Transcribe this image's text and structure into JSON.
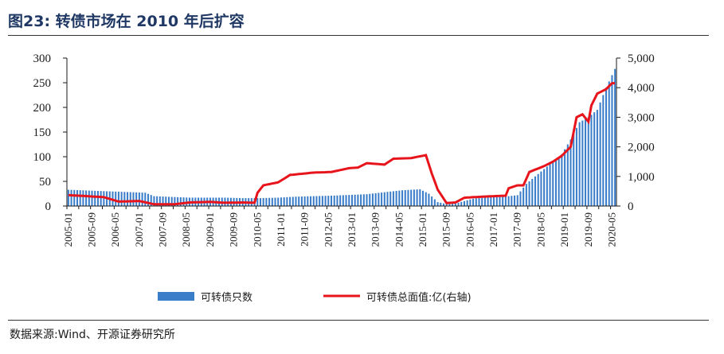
{
  "header": {
    "title": "图23:  转债市场在 2010 年后扩容"
  },
  "footer": {
    "source": "数据来源:Wind、开源证券研究所"
  },
  "chart_data": {
    "type": "bar+line",
    "title": "转债市场在 2010 年后扩容",
    "x_start": "2005-01",
    "x_end": "2020-06",
    "x_tick_labels": [
      "2005-01",
      "2005-09",
      "2006-05",
      "2007-01",
      "2007-09",
      "2008-05",
      "2009-01",
      "2009-09",
      "2010-05",
      "2011-01",
      "2011-09",
      "2012-05",
      "2013-01",
      "2013-09",
      "2014-05",
      "2015-01",
      "2015-09",
      "2016-05",
      "2017-01",
      "2017-09",
      "2018-05",
      "2019-01",
      "2019-09",
      "2020-05"
    ],
    "y_left": {
      "min": 0,
      "max": 300,
      "ticks": [
        "0",
        "50",
        "100",
        "150",
        "200",
        "250",
        "300"
      ]
    },
    "y_right": {
      "min": 0,
      "max": 5000,
      "ticks": [
        "0",
        "1,000",
        "2,000",
        "3,000",
        "4,000",
        "5,000"
      ]
    },
    "grid": false,
    "legend_position": "bottom",
    "series": [
      {
        "name": "可转债只数",
        "type": "bar",
        "axis": "left",
        "color": "#3a7dc9",
        "anchors": [
          [
            "2005-01",
            33
          ],
          [
            "2006-06",
            29
          ],
          [
            "2007-03",
            27
          ],
          [
            "2007-06",
            20
          ],
          [
            "2008-06",
            17
          ],
          [
            "2009-06",
            17
          ],
          [
            "2009-12",
            16
          ],
          [
            "2010-06",
            16
          ],
          [
            "2010-12",
            17
          ],
          [
            "2011-06",
            19
          ],
          [
            "2012-06",
            21
          ],
          [
            "2013-06",
            24
          ],
          [
            "2014-06",
            32
          ],
          [
            "2014-12",
            34
          ],
          [
            "2015-03",
            25
          ],
          [
            "2015-06",
            8
          ],
          [
            "2015-09",
            4
          ],
          [
            "2015-12",
            5
          ],
          [
            "2016-06",
            15
          ],
          [
            "2016-12",
            18
          ],
          [
            "2017-06",
            20
          ],
          [
            "2017-09",
            22
          ],
          [
            "2017-12",
            45
          ],
          [
            "2018-06",
            75
          ],
          [
            "2018-12",
            105
          ],
          [
            "2019-03",
            135
          ],
          [
            "2019-06",
            170
          ],
          [
            "2019-09",
            180
          ],
          [
            "2019-12",
            195
          ],
          [
            "2020-03",
            240
          ],
          [
            "2020-06",
            278
          ]
        ]
      },
      {
        "name": "可转债总面值:亿(右轴)",
        "type": "line",
        "axis": "right",
        "color": "#e8141b",
        "anchors": [
          [
            "2005-01",
            370
          ],
          [
            "2006-01",
            300
          ],
          [
            "2006-06",
            150
          ],
          [
            "2007-01",
            170
          ],
          [
            "2007-06",
            60
          ],
          [
            "2008-01",
            60
          ],
          [
            "2008-06",
            120
          ],
          [
            "2009-01",
            140
          ],
          [
            "2009-06",
            110
          ],
          [
            "2009-12",
            120
          ],
          [
            "2010-04",
            110
          ],
          [
            "2010-05",
            450
          ],
          [
            "2010-07",
            700
          ],
          [
            "2010-12",
            800
          ],
          [
            "2011-04",
            1050
          ],
          [
            "2011-09",
            1100
          ],
          [
            "2011-12",
            1130
          ],
          [
            "2012-06",
            1150
          ],
          [
            "2012-12",
            1280
          ],
          [
            "2013-03",
            1300
          ],
          [
            "2013-06",
            1450
          ],
          [
            "2013-12",
            1400
          ],
          [
            "2014-03",
            1600
          ],
          [
            "2014-09",
            1620
          ],
          [
            "2014-12",
            1680
          ],
          [
            "2015-02",
            1720
          ],
          [
            "2015-04",
            1100
          ],
          [
            "2015-06",
            550
          ],
          [
            "2015-09",
            100
          ],
          [
            "2015-12",
            120
          ],
          [
            "2016-03",
            280
          ],
          [
            "2016-06",
            300
          ],
          [
            "2016-12",
            330
          ],
          [
            "2017-05",
            350
          ],
          [
            "2017-06",
            600
          ],
          [
            "2017-09",
            700
          ],
          [
            "2017-11",
            700
          ],
          [
            "2018-01",
            1150
          ],
          [
            "2018-06",
            1350
          ],
          [
            "2018-09",
            1500
          ],
          [
            "2018-12",
            1700
          ],
          [
            "2019-03",
            2000
          ],
          [
            "2019-05",
            3000
          ],
          [
            "2019-07",
            3100
          ],
          [
            "2019-09",
            2850
          ],
          [
            "2019-10",
            3400
          ],
          [
            "2019-12",
            3800
          ],
          [
            "2020-03",
            3950
          ],
          [
            "2020-05",
            4150
          ],
          [
            "2020-06",
            4150
          ]
        ]
      }
    ]
  }
}
